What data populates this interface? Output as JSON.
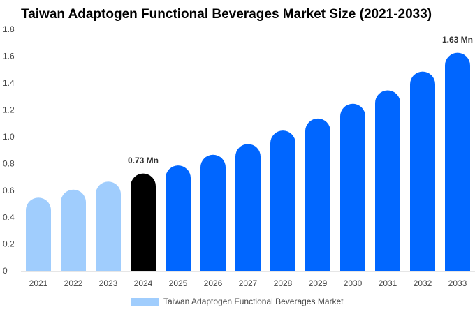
{
  "chart_data": {
    "type": "bar",
    "title": "Taiwan Adaptogen Functional Beverages Market Size (2021-2033)",
    "categories": [
      "2021",
      "2022",
      "2023",
      "2024",
      "2025",
      "2026",
      "2027",
      "2028",
      "2029",
      "2030",
      "2031",
      "2032",
      "2033"
    ],
    "series": [
      {
        "name": "Taiwan Adaptogen Functional Beverages Market",
        "color": "#a0cdfd",
        "values": [
          0.55,
          0.61,
          0.67,
          0.73,
          0.79,
          0.87,
          0.95,
          1.05,
          1.14,
          1.25,
          1.35,
          1.49,
          1.63
        ],
        "value_labels": [
          null,
          null,
          null,
          "0.73 Mn",
          null,
          null,
          null,
          null,
          null,
          null,
          null,
          null,
          "1.63 Mn"
        ],
        "colors": [
          "#a0cdfd",
          "#a0cdfd",
          "#a0cdfd",
          "#000000",
          "#0066ff",
          "#0066ff",
          "#0066ff",
          "#0066ff",
          "#0066ff",
          "#0066ff",
          "#0066ff",
          "#0066ff",
          "#0066ff"
        ]
      }
    ],
    "ylim": [
      0,
      1.8
    ],
    "yticks": [
      0,
      0.2,
      0.4,
      0.6,
      0.8,
      {
        "value": 1,
        "label": "1.0"
      },
      1.2,
      1.4,
      1.6,
      1.8
    ],
    "grid": false,
    "legend": "bottom"
  }
}
